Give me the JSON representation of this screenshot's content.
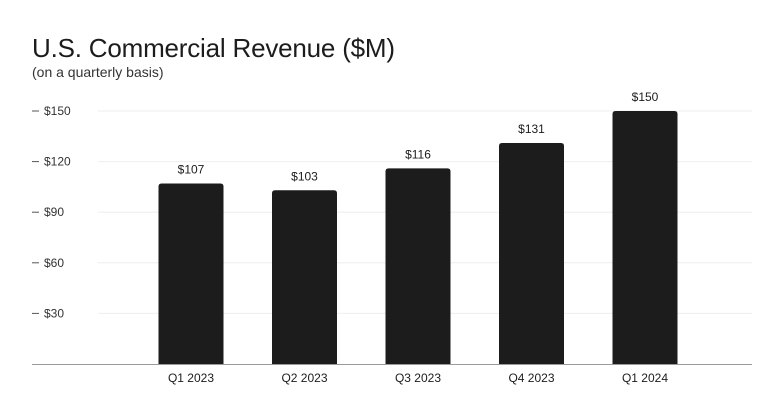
{
  "chart_data": {
    "type": "bar",
    "title": "U.S. Commercial Revenue ($M)",
    "subtitle": "(on a quarterly basis)",
    "categories": [
      "Q1 2023",
      "Q2 2023",
      "Q3 2023",
      "Q4 2023",
      "Q1 2024"
    ],
    "values": [
      107,
      103,
      116,
      131,
      150
    ],
    "data_labels": [
      "$107",
      "$103",
      "$116",
      "$131",
      "$150"
    ],
    "yticks": [
      30,
      60,
      90,
      120,
      150
    ],
    "ytick_labels": [
      "$30",
      "$60",
      "$90",
      "$120",
      "$150"
    ],
    "ylim": [
      0,
      150
    ],
    "xlabel": "",
    "ylabel": "",
    "grid": true,
    "colors": {
      "bar": "#1c1c1c",
      "grid": "#eeeeee",
      "axis": "#9a9a9a",
      "text": "#1c1c1c"
    }
  }
}
